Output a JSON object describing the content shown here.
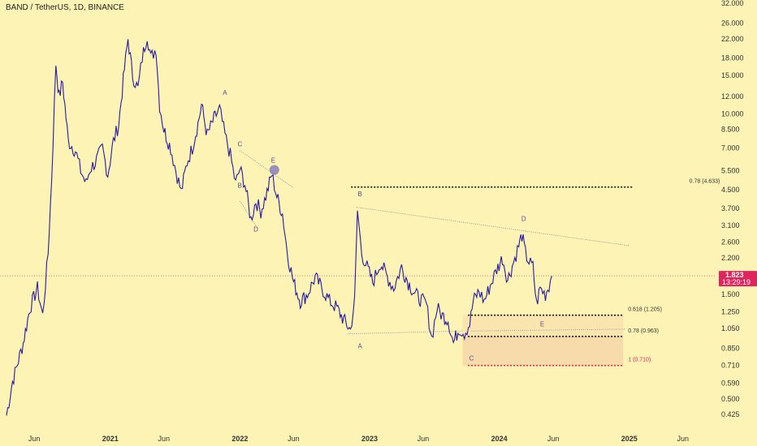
{
  "header": {
    "symbol_title": "BAND / TetherUS, 1D, BINANCE"
  },
  "price_badge": {
    "price": "1.823",
    "countdown": "13:29:19"
  },
  "chart_data": {
    "type": "line",
    "title": "BAND / TetherUS, 1D, BINANCE",
    "y_scale": "log",
    "ylim": [
      0.4,
      32
    ],
    "y_ticks": [
      32.0,
      26.0,
      22.0,
      18.0,
      15.0,
      12.0,
      10.0,
      8.5,
      7.0,
      5.5,
      4.5,
      3.7,
      3.1,
      2.6,
      2.2,
      1.5,
      1.25,
      1.05,
      0.85,
      0.71,
      0.59,
      0.5,
      0.425
    ],
    "y_tick_labels": [
      "32.000",
      "26.000",
      "22.000",
      "18.000",
      "15.000",
      "12.000",
      "10.000",
      "8.500",
      "7.000",
      "5.500",
      "4.500",
      "3.700",
      "3.100",
      "2.600",
      "2.200",
      "1.500",
      "1.250",
      "1.050",
      "0.850",
      "0.710",
      "0.590",
      "0.500",
      "0.425"
    ],
    "x_ticks": [
      "2020-06-01",
      "2021-01-01",
      "2021-06-01",
      "2022-01-01",
      "2022-06-01",
      "2023-01-01",
      "2023-06-01",
      "2024-01-01",
      "2024-06-01",
      "2025-01-01",
      "2025-06-01"
    ],
    "x_tick_labels": [
      "Jun",
      "2021",
      "Jun",
      "2022",
      "Jun",
      "2023",
      "Jun",
      "2024",
      "Jun",
      "2025",
      "Jun"
    ],
    "series": [
      {
        "color": "#2a1aa0",
        "points": [
          [
            "2020-03-15",
            0.42
          ],
          [
            "2020-04-01",
            0.6
          ],
          [
            "2020-05-01",
            0.9
          ],
          [
            "2020-05-20",
            1.3
          ],
          [
            "2020-06-10",
            1.6
          ],
          [
            "2020-06-25",
            1.2
          ],
          [
            "2020-07-10",
            2.3
          ],
          [
            "2020-07-20",
            5.0
          ],
          [
            "2020-08-01",
            17.0
          ],
          [
            "2020-08-10",
            12.0
          ],
          [
            "2020-08-20",
            14.0
          ],
          [
            "2020-09-05",
            7.5
          ],
          [
            "2020-09-25",
            6.8
          ],
          [
            "2020-10-10",
            5.5
          ],
          [
            "2020-10-25",
            4.8
          ],
          [
            "2020-11-05",
            5.6
          ],
          [
            "2020-11-20",
            6.0
          ],
          [
            "2020-12-10",
            7.0
          ],
          [
            "2020-12-25",
            5.3
          ],
          [
            "2021-01-10",
            7.5
          ],
          [
            "2021-01-25",
            9.0
          ],
          [
            "2021-02-10",
            16.0
          ],
          [
            "2021-02-20",
            22.0
          ],
          [
            "2021-03-05",
            15.0
          ],
          [
            "2021-03-20",
            13.0
          ],
          [
            "2021-04-01",
            18.0
          ],
          [
            "2021-04-15",
            23.0
          ],
          [
            "2021-04-25",
            18.0
          ],
          [
            "2021-05-10",
            20.0
          ],
          [
            "2021-05-20",
            11.0
          ],
          [
            "2021-06-01",
            8.5
          ],
          [
            "2021-06-20",
            7.0
          ],
          [
            "2021-07-05",
            5.5
          ],
          [
            "2021-07-20",
            4.4
          ],
          [
            "2021-08-05",
            6.0
          ],
          [
            "2021-08-20",
            7.0
          ],
          [
            "2021-09-05",
            9.0
          ],
          [
            "2021-09-15",
            11.0
          ],
          [
            "2021-10-01",
            8.0
          ],
          [
            "2021-10-20",
            9.5
          ],
          [
            "2021-11-05",
            10.5
          ],
          [
            "2021-11-20",
            8.0
          ],
          [
            "2021-12-05",
            6.5
          ],
          [
            "2021-12-20",
            4.8
          ],
          [
            "2022-01-01",
            5.6
          ],
          [
            "2022-01-15",
            4.8
          ],
          [
            "2022-02-01",
            3.3
          ],
          [
            "2022-02-15",
            4.0
          ],
          [
            "2022-03-01",
            3.6
          ],
          [
            "2022-03-15",
            4.2
          ],
          [
            "2022-04-01",
            5.3
          ],
          [
            "2022-04-15",
            4.2
          ],
          [
            "2022-05-01",
            3.5
          ],
          [
            "2022-05-15",
            2.3
          ],
          [
            "2022-06-01",
            1.7
          ],
          [
            "2022-06-20",
            1.4
          ],
          [
            "2022-07-10",
            1.5
          ],
          [
            "2022-08-01",
            1.8
          ],
          [
            "2022-08-20",
            1.6
          ],
          [
            "2022-09-10",
            1.4
          ],
          [
            "2022-10-01",
            1.3
          ],
          [
            "2022-10-20",
            1.15
          ],
          [
            "2022-11-08",
            1.03
          ],
          [
            "2022-11-20",
            1.4
          ],
          [
            "2022-11-28",
            3.6
          ],
          [
            "2022-12-10",
            2.3
          ],
          [
            "2022-12-25",
            2.0
          ],
          [
            "2023-01-10",
            1.7
          ],
          [
            "2023-02-01",
            2.1
          ],
          [
            "2023-02-20",
            1.8
          ],
          [
            "2023-03-10",
            1.6
          ],
          [
            "2023-04-01",
            2.0
          ],
          [
            "2023-04-20",
            1.7
          ],
          [
            "2023-05-10",
            1.5
          ],
          [
            "2023-06-10",
            1.35
          ],
          [
            "2023-06-25",
            0.95
          ],
          [
            "2023-07-10",
            1.3
          ],
          [
            "2023-07-25",
            1.2
          ],
          [
            "2023-08-10",
            1.15
          ],
          [
            "2023-08-25",
            0.9
          ],
          [
            "2023-09-10",
            1.05
          ],
          [
            "2023-09-25",
            1.0
          ],
          [
            "2023-10-10",
            1.1
          ],
          [
            "2023-10-20",
            1.4
          ],
          [
            "2023-11-05",
            1.55
          ],
          [
            "2023-11-20",
            1.4
          ],
          [
            "2023-12-10",
            1.7
          ],
          [
            "2023-12-25",
            1.95
          ],
          [
            "2024-01-10",
            2.2
          ],
          [
            "2024-01-25",
            1.75
          ],
          [
            "2024-02-10",
            2.1
          ],
          [
            "2024-02-25",
            2.5
          ],
          [
            "2024-03-05",
            2.8
          ],
          [
            "2024-03-15",
            2.3
          ],
          [
            "2024-03-25",
            2.1
          ],
          [
            "2024-04-05",
            2.0
          ],
          [
            "2024-04-15",
            1.35
          ],
          [
            "2024-04-25",
            1.6
          ],
          [
            "2024-05-10",
            1.5
          ],
          [
            "2024-05-20",
            1.65
          ],
          [
            "2024-05-28",
            1.82
          ]
        ]
      }
    ],
    "levels": [
      {
        "label": "0.78 (4.633)",
        "value": 4.633,
        "color": "#111111",
        "style": "dotted"
      },
      {
        "label": "0.618 (1.205)",
        "value": 1.205,
        "color": "#111111",
        "style": "dotted"
      },
      {
        "label": "0.78 (0.963)",
        "value": 0.963,
        "color": "#111111",
        "style": "dotted"
      },
      {
        "label": "1 (0.710)",
        "value": 0.71,
        "color": "#e0245e",
        "style": "dotted"
      }
    ],
    "wave_labels": [
      {
        "text": "A",
        "date": "2021-11-20",
        "price": 12.2
      },
      {
        "text": "C",
        "date": "2022-01-01",
        "price": 7.1
      },
      {
        "text": "B",
        "date": "2022-01-01",
        "price": 4.6
      },
      {
        "text": "D",
        "date": "2022-02-15",
        "price": 2.9
      },
      {
        "text": "E",
        "date": "2022-04-05",
        "price": 6.0
      },
      {
        "text": "B",
        "date": "2022-12-05",
        "price": 4.2
      },
      {
        "text": "A",
        "date": "2022-12-05",
        "price": 0.85
      },
      {
        "text": "D",
        "date": "2024-03-10",
        "price": 3.25
      },
      {
        "text": "C",
        "date": "2023-10-15",
        "price": 0.75
      },
      {
        "text": "E",
        "date": "2024-05-01",
        "price": 1.07
      }
    ],
    "annotation_lines": [
      {
        "from": [
          "2022-01-01",
          6.8
        ],
        "to": [
          "2022-06-01",
          4.6
        ]
      },
      {
        "from": [
          "2022-01-01",
          4.0
        ],
        "to": [
          "2022-02-20",
          3.0
        ]
      },
      {
        "from": [
          "2022-11-25",
          3.75
        ],
        "to": [
          "2025-01-01",
          2.5
        ]
      },
      {
        "from": [
          "2022-11-01",
          0.99
        ],
        "to": [
          "2023-09-20",
          1.02
        ]
      },
      {
        "from": [
          "2023-10-15",
          1.02
        ],
        "to": [
          "2024-12-20",
          1.04
        ]
      }
    ],
    "current_price": 1.823,
    "current_price_line_color": "#e0245e",
    "colors": {
      "background": "#fcf3b4",
      "series": "#2a1aa0",
      "label": "#5b4a9a",
      "zone_fill": "#f6d8a8",
      "badge": "#e0245e"
    }
  }
}
